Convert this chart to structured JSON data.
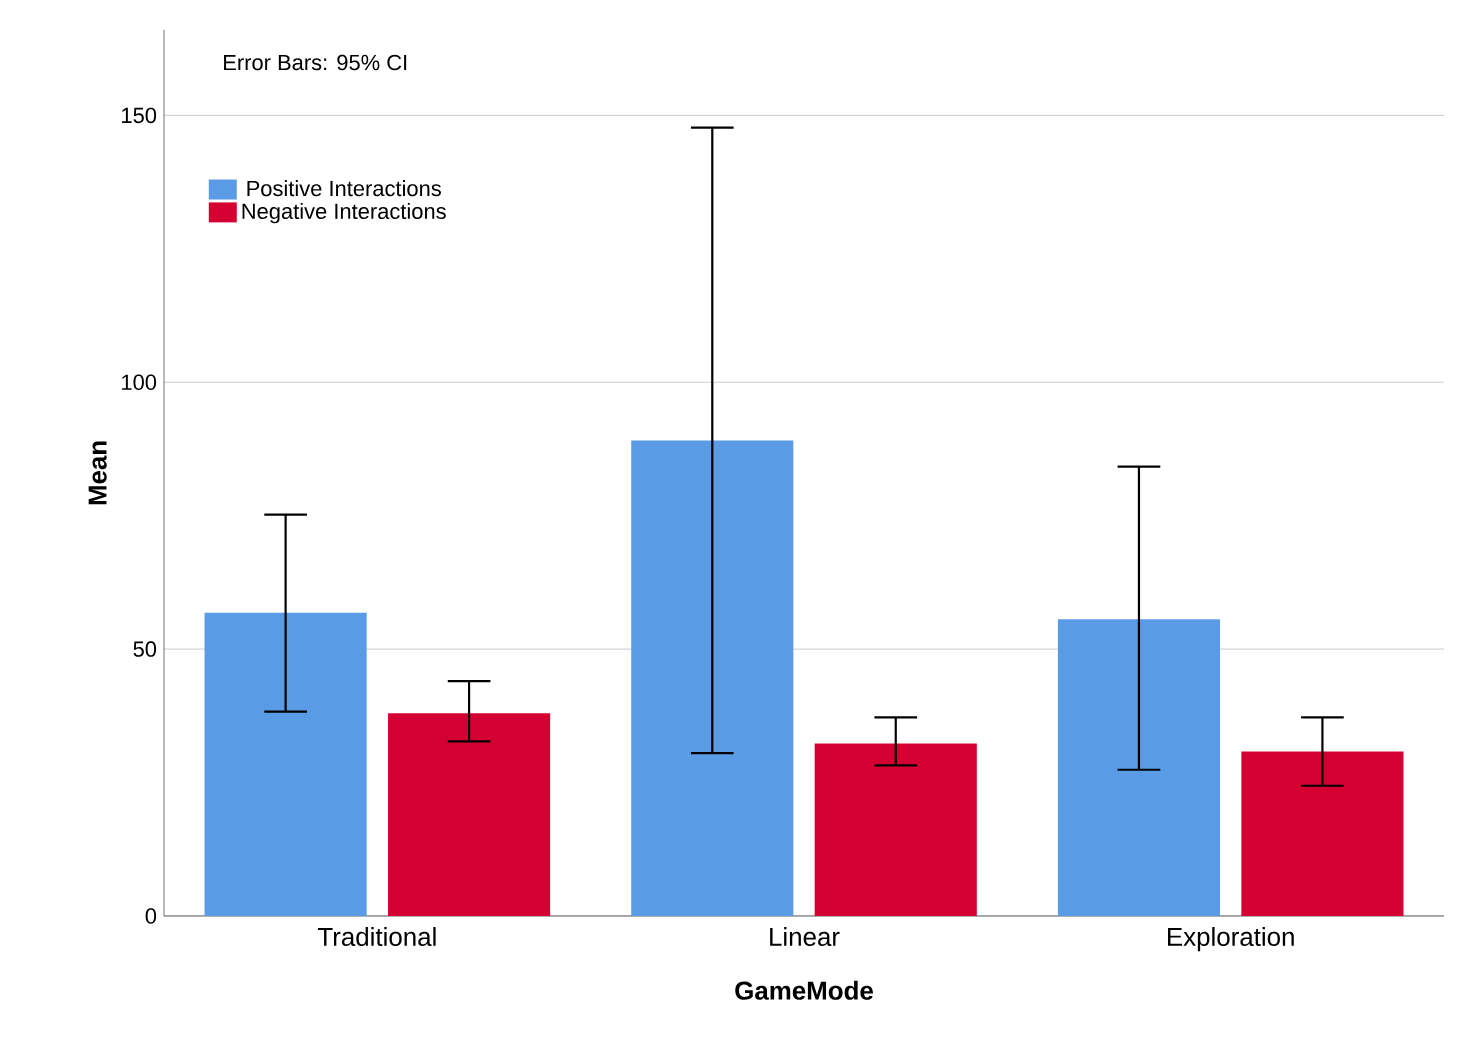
{
  "chart_data": {
    "type": "bar",
    "xlabel": "GameMode",
    "ylabel": "Mean",
    "annotations": [
      "Error Bars: 95% CI"
    ],
    "categories": [
      "Traditional",
      "Linear",
      "Exploration"
    ],
    "series": [
      {
        "name": "Positive Interactions",
        "color": "#5a9be6",
        "values": [
          56.8,
          89.1,
          55.6
        ],
        "errors": [
          [
            38.3,
            75.2
          ],
          [
            30.5,
            147.7
          ],
          [
            27.4,
            84.2
          ]
        ]
      },
      {
        "name": "Negative Interactions",
        "color": "#d50032",
        "values": [
          38.0,
          32.3,
          30.8
        ],
        "errors": [
          [
            32.7,
            44.0
          ],
          [
            28.2,
            37.2
          ],
          [
            24.4,
            37.2
          ]
        ]
      }
    ],
    "ylim": [
      0,
      166
    ],
    "yticks": [
      0,
      50,
      100,
      150
    ],
    "grid": "y",
    "legend": "top left"
  }
}
